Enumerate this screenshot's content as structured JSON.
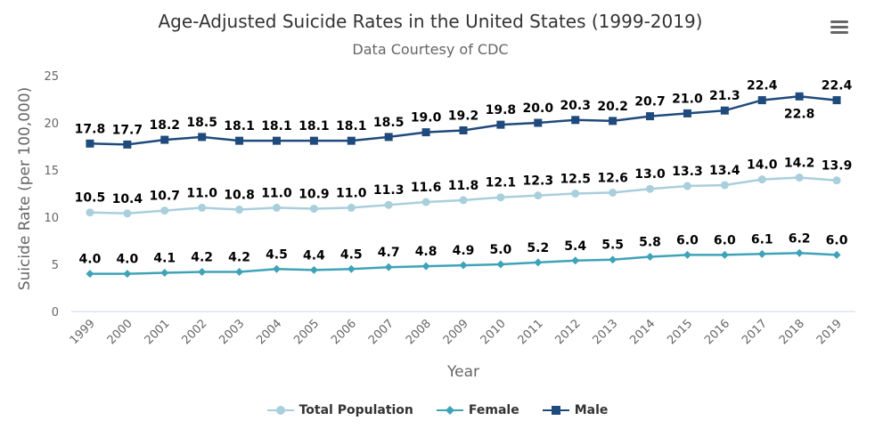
{
  "header": {
    "title": "Age-Adjusted Suicide Rates in the United States (1999-2019)",
    "subtitle": "Data Courtesy of CDC",
    "menu_icon": "hamburger-menu-icon"
  },
  "chart_data": {
    "type": "line",
    "title": "Age-Adjusted Suicide Rates in the United States (1999-2019)",
    "subtitle": "Data Courtesy of CDC",
    "xlabel": "Year",
    "ylabel": "Suicide Rate (per 100,000)",
    "ylim": [
      0,
      25
    ],
    "yticks": [
      0,
      5,
      10,
      15,
      20,
      25
    ],
    "grid": false,
    "legend_position": "bottom-center",
    "categories": [
      "1999",
      "2000",
      "2001",
      "2002",
      "2003",
      "2004",
      "2005",
      "2006",
      "2007",
      "2008",
      "2009",
      "2010",
      "2011",
      "2012",
      "2013",
      "2014",
      "2015",
      "2016",
      "2017",
      "2018",
      "2019"
    ],
    "series": [
      {
        "name": "Total Population",
        "color": "#a9cfdc",
        "marker": "circle",
        "values": [
          10.5,
          10.4,
          10.7,
          11.0,
          10.8,
          11.0,
          10.9,
          11.0,
          11.3,
          11.6,
          11.8,
          12.1,
          12.3,
          12.5,
          12.6,
          13.0,
          13.3,
          13.4,
          14.0,
          14.2,
          13.9
        ],
        "labels": [
          "10.5",
          "10.4",
          "10.7",
          "11.0",
          "10.8",
          "11.0",
          "10.9",
          "11.0",
          "11.3",
          "11.6",
          "11.8",
          "12.1",
          "12.3",
          "12.5",
          "12.6",
          "13.0",
          "13.3",
          "13.4",
          "14.0",
          "14.2",
          "13.9"
        ]
      },
      {
        "name": "Female",
        "color": "#3fa3b8",
        "marker": "diamond",
        "values": [
          4.0,
          4.0,
          4.1,
          4.2,
          4.2,
          4.5,
          4.4,
          4.5,
          4.7,
          4.8,
          4.9,
          5.0,
          5.2,
          5.4,
          5.5,
          5.8,
          6.0,
          6.0,
          6.1,
          6.2,
          6.0
        ],
        "labels": [
          "4.0",
          "4.0",
          "4.1",
          "4.2",
          "4.2",
          "4.5",
          "4.4",
          "4.5",
          "4.7",
          "4.8",
          "4.9",
          "5.0",
          "5.2",
          "5.4",
          "5.5",
          "5.8",
          "6.0",
          "6.0",
          "6.1",
          "6.2",
          "6.0"
        ]
      },
      {
        "name": "Male",
        "color": "#1f4a7c",
        "marker": "square",
        "values": [
          17.8,
          17.7,
          18.2,
          18.5,
          18.1,
          18.1,
          18.1,
          18.1,
          18.5,
          19.0,
          19.2,
          19.8,
          20.0,
          20.3,
          20.2,
          20.7,
          21.0,
          21.3,
          22.4,
          22.8,
          22.4
        ],
        "labels": [
          "17.8",
          "17.7",
          "18.2",
          "18.5",
          "18.1",
          "18.1",
          "18.1",
          "18.1",
          "18.5",
          "19.0",
          "19.2",
          "19.8",
          "20.0",
          "20.3",
          "20.2",
          "20.7",
          "21.0",
          "21.3",
          "22.4",
          "22.8",
          "22.4"
        ]
      }
    ]
  }
}
